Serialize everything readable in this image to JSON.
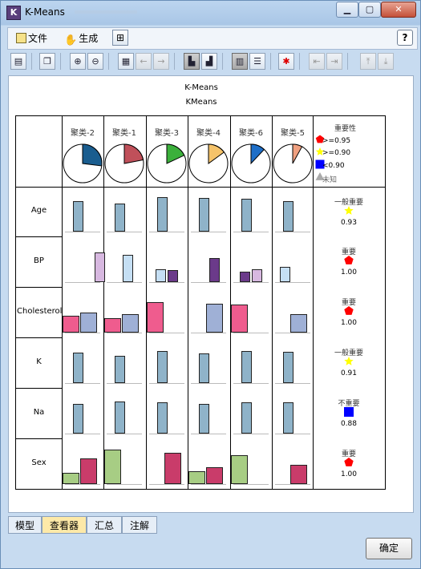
{
  "window": {
    "title": "K-Means",
    "app_icon": "K"
  },
  "menu": {
    "file": "文件",
    "generate": "生成",
    "help_icon": "help-icon"
  },
  "colors": {
    "pie": "#1a5d8f",
    "pie2": "#c0505a",
    "pie3": "#3bb03b",
    "pie4": "#f5c36a",
    "pie6": "#1f6fc8",
    "pie5": "#f0a080",
    "blue_bar": "#8fb3c9",
    "lilac": "#d7b8e0",
    "lightblue": "#c5dff4",
    "purple": "#6b3a8a",
    "pink": "#ef5c8e",
    "periwinkle": "#9fb0d6",
    "green": "#a7cd84",
    "crimson": "#c93c6a",
    "imp_high": "#ff0000",
    "imp_mid": "#ffff00",
    "imp_low": "#0000ff",
    "imp_unknown": "#aaaaaa"
  },
  "viewer": {
    "title": "K-Means",
    "subtitle": "KMeans"
  },
  "clusters": [
    {
      "label": "聚类-2",
      "share": 0.27
    },
    {
      "label": "聚类-1",
      "share": 0.22
    },
    {
      "label": "聚类-3",
      "share": 0.18
    },
    {
      "label": "聚类-4",
      "share": 0.15
    },
    {
      "label": "聚类-6",
      "share": 0.12
    },
    {
      "label": "聚类-5",
      "share": 0.08
    }
  ],
  "legend": {
    "title": "重要性",
    "items": [
      {
        "shape": "pentagon-red",
        "label": ">=0.95"
      },
      {
        "shape": "star-yellow",
        "label": ">=0.90"
      },
      {
        "shape": "square-blue",
        "label": "<0.90"
      },
      {
        "shape": "triangle-gray",
        "label": "未知"
      }
    ]
  },
  "chart_data": {
    "type": "bar",
    "categories": [
      "聚类-2",
      "聚类-1",
      "聚类-3",
      "聚类-4",
      "聚类-6",
      "聚类-5"
    ],
    "fields": [
      {
        "name": "Age",
        "importance_label": "一般重要",
        "importance": "0.93",
        "icon": "star-yellow",
        "values": [
          [
            0.8
          ],
          [
            0.72
          ],
          [
            0.9
          ],
          [
            0.87
          ],
          [
            0.85
          ],
          [
            0.8
          ]
        ]
      },
      {
        "name": "BP",
        "importance_label": "重要",
        "importance": "1.00",
        "icon": "pentagon-red",
        "values": [
          [
            0.0,
            0.76
          ],
          [
            0.7,
            0.0
          ],
          [
            0.33,
            0.31
          ],
          [
            0.0,
            0.62
          ],
          [
            0.27,
            0.33
          ],
          [
            0.38,
            0.0
          ]
        ]
      },
      {
        "name": "Cholesterol",
        "importance_label": "重要",
        "importance": "1.00",
        "icon": "pentagon-red",
        "values": [
          [
            0.42,
            0.51
          ],
          [
            0.36,
            0.47
          ],
          [
            0.78,
            0.0
          ],
          [
            0.0,
            0.73
          ],
          [
            0.72,
            0.0
          ],
          [
            0.0,
            0.47
          ]
        ]
      },
      {
        "name": "K",
        "importance_label": "一般重要",
        "importance": "0.91",
        "icon": "star-yellow",
        "values": [
          [
            0.78
          ],
          [
            0.7
          ],
          [
            0.82
          ],
          [
            0.75
          ],
          [
            0.82
          ],
          [
            0.8
          ]
        ]
      },
      {
        "name": "Na",
        "importance_label": "不重要",
        "importance": "0.88",
        "icon": "square-blue",
        "values": [
          [
            0.76
          ],
          [
            0.82
          ],
          [
            0.8
          ],
          [
            0.76
          ],
          [
            0.8
          ],
          [
            0.8
          ]
        ]
      },
      {
        "name": "Sex",
        "importance_label": "重要",
        "importance": "1.00",
        "icon": "pentagon-red",
        "values": [
          [
            0.28,
            0.66
          ],
          [
            0.87,
            0.0
          ],
          [
            0.0,
            0.79
          ],
          [
            0.32,
            0.43
          ],
          [
            0.73,
            0.0
          ],
          [
            0.0,
            0.48
          ]
        ]
      }
    ]
  },
  "tabs": [
    {
      "label": "模型"
    },
    {
      "label": "查看器"
    },
    {
      "label": "汇总"
    },
    {
      "label": "注解"
    }
  ],
  "ok_label": "确定"
}
